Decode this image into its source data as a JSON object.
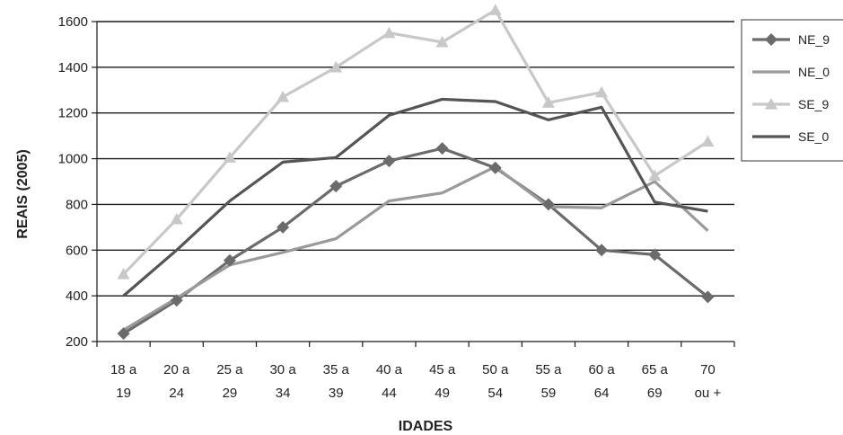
{
  "chart_data": {
    "type": "line",
    "xlabel": "IDADES",
    "ylabel": "REAIS (2005)",
    "ylim": [
      200,
      1600
    ],
    "yticks": [
      200,
      400,
      600,
      800,
      1000,
      1200,
      1400,
      1600
    ],
    "grid": true,
    "legend_position": "right",
    "categories": [
      [
        "18 a",
        "19"
      ],
      [
        "20 a",
        "24"
      ],
      [
        "25 a",
        "29"
      ],
      [
        "30 a",
        "34"
      ],
      [
        "35 a",
        "39"
      ],
      [
        "40 a",
        "44"
      ],
      [
        "45 a",
        "49"
      ],
      [
        "50 a",
        "54"
      ],
      [
        "55 a",
        "59"
      ],
      [
        "60 a",
        "64"
      ],
      [
        "65 a",
        "69"
      ],
      [
        "70",
        "ou +"
      ]
    ],
    "series": [
      {
        "name": "NE_9",
        "color": "#6b6b6b",
        "marker": "diamond",
        "values": [
          235,
          380,
          555,
          700,
          880,
          990,
          1045,
          960,
          800,
          600,
          580,
          395
        ]
      },
      {
        "name": "NE_0",
        "color": "#9a9a9a",
        "marker": "none",
        "values": [
          250,
          390,
          535,
          590,
          650,
          815,
          850,
          965,
          790,
          785,
          900,
          685
        ]
      },
      {
        "name": "SE_9",
        "color": "#c8c8c8",
        "marker": "triangle",
        "values": [
          495,
          735,
          1005,
          1270,
          1400,
          1550,
          1510,
          1650,
          1245,
          1290,
          925,
          1075
        ]
      },
      {
        "name": "SE_0",
        "color": "#555555",
        "marker": "none",
        "values": [
          400,
          600,
          815,
          985,
          1005,
          1190,
          1260,
          1250,
          1170,
          1225,
          810,
          770
        ]
      }
    ]
  }
}
